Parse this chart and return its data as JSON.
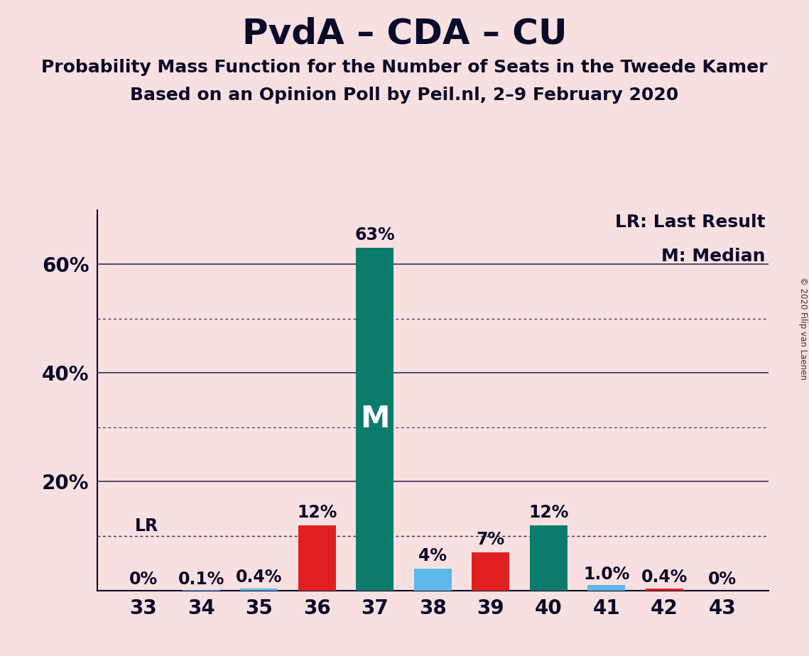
{
  "title": "PvdA – CDA – CU",
  "subtitle1": "Probability Mass Function for the Number of Seats in the Tweede Kamer",
  "subtitle2": "Based on an Opinion Poll by Peil.nl, 2–9 February 2020",
  "copyright": "© 2020 Filip van Laenen",
  "legend_lr": "LR: Last Result",
  "legend_m": "M: Median",
  "seats": [
    33,
    34,
    35,
    36,
    37,
    38,
    39,
    40,
    41,
    42,
    43
  ],
  "values": [
    0.0,
    0.1,
    0.4,
    12.0,
    63.0,
    4.0,
    7.0,
    12.0,
    1.0,
    0.4,
    0.0
  ],
  "labels": [
    "0%",
    "0.1%",
    "0.4%",
    "12%",
    "63%",
    "4%",
    "7%",
    "12%",
    "1.0%",
    "0.4%",
    "0%"
  ],
  "colors": [
    "#E02020",
    "#5BB8E8",
    "#5BB8E8",
    "#E02020",
    "#0B7B6C",
    "#5BB8E8",
    "#E02020",
    "#0B7B6C",
    "#5BB8E8",
    "#E02020",
    "#E02020"
  ],
  "lr_seat": 33,
  "lr_value": 10.0,
  "median_seat": 37,
  "background_color": "#F9E0E0",
  "bar_width": 0.65,
  "ylim": [
    0,
    70
  ],
  "ytick_values": [
    20,
    40,
    60
  ],
  "ytick_labels": [
    "20%",
    "40%",
    "60%"
  ],
  "dotted_lines": [
    10,
    30,
    50
  ],
  "solid_lines": [
    20,
    40,
    60
  ],
  "title_fontsize": 36,
  "subtitle_fontsize": 18,
  "axis_fontsize": 20,
  "label_fontsize": 17,
  "legend_fontsize": 18,
  "m_fontsize": 30
}
